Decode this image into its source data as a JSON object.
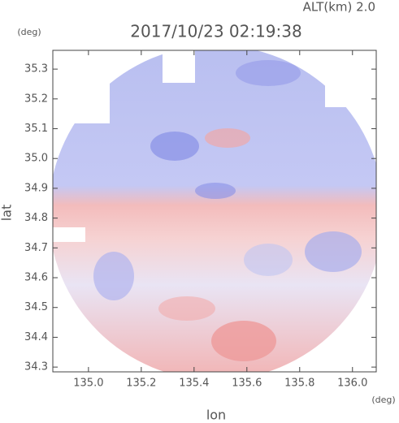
{
  "chart_data": {
    "type": "radar-field",
    "title": "2017/10/23 02:19:38",
    "subtitle": "ALT(km) 2.0",
    "x_label": "lon",
    "y_label": "lat",
    "x_unit": "(deg)",
    "y_unit": "(deg)",
    "xlim": [
      134.865,
      136.09
    ],
    "ylim": [
      34.284,
      35.363
    ],
    "xticks": [
      {
        "value": 135,
        "label": "135.0"
      },
      135.2,
      135.4,
      135.6,
      135.8,
      {
        "value": 136,
        "label": "136.0"
      }
    ],
    "yticks": [
      34.3,
      34.4,
      34.5,
      34.6,
      34.7,
      34.8,
      34.9,
      {
        "value": 35,
        "label": "35.0"
      },
      35.1,
      35.2,
      35.3
    ]
  }
}
